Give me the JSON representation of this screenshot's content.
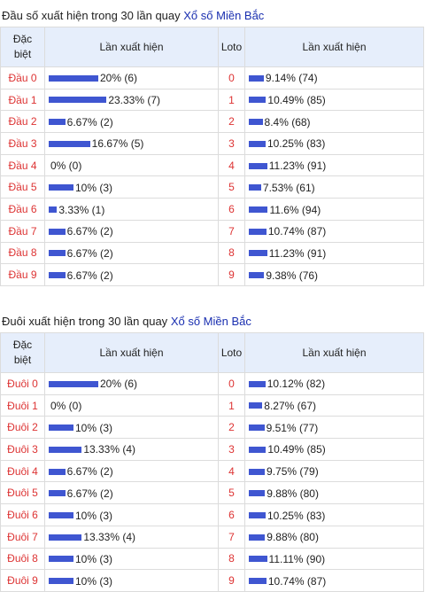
{
  "head_section": {
    "title_prefix": "Đầu số xuất hiện trong 30 lần quay",
    "title_link": "Xổ số Miền Bắc",
    "col_special": "Đặc biệt",
    "col_count1": "Lần xuất hiện",
    "col_loto": "Loto",
    "col_count2": "Lần xuất hiện",
    "rows": [
      {
        "label": "Đầu 0",
        "special_pct": 20,
        "special_text": "20% (6)",
        "loto": "0",
        "loto_pct": 9.14,
        "loto_text": "9.14% (74)"
      },
      {
        "label": "Đầu 1",
        "special_pct": 23.33,
        "special_text": "23.33% (7)",
        "loto": "1",
        "loto_pct": 10.49,
        "loto_text": "10.49% (85)"
      },
      {
        "label": "Đầu 2",
        "special_pct": 6.67,
        "special_text": "6.67% (2)",
        "loto": "2",
        "loto_pct": 8.4,
        "loto_text": "8.4% (68)"
      },
      {
        "label": "Đầu 3",
        "special_pct": 16.67,
        "special_text": "16.67% (5)",
        "loto": "3",
        "loto_pct": 10.25,
        "loto_text": "10.25% (83)"
      },
      {
        "label": "Đầu 4",
        "special_pct": 0,
        "special_text": "0% (0)",
        "loto": "4",
        "loto_pct": 11.23,
        "loto_text": "11.23% (91)"
      },
      {
        "label": "Đầu 5",
        "special_pct": 10,
        "special_text": "10% (3)",
        "loto": "5",
        "loto_pct": 7.53,
        "loto_text": "7.53% (61)"
      },
      {
        "label": "Đầu 6",
        "special_pct": 3.33,
        "special_text": "3.33% (1)",
        "loto": "6",
        "loto_pct": 11.6,
        "loto_text": "11.6% (94)"
      },
      {
        "label": "Đầu 7",
        "special_pct": 6.67,
        "special_text": "6.67% (2)",
        "loto": "7",
        "loto_pct": 10.74,
        "loto_text": "10.74% (87)"
      },
      {
        "label": "Đầu 8",
        "special_pct": 6.67,
        "special_text": "6.67% (2)",
        "loto": "8",
        "loto_pct": 11.23,
        "loto_text": "11.23% (91)"
      },
      {
        "label": "Đầu 9",
        "special_pct": 6.67,
        "special_text": "6.67% (2)",
        "loto": "9",
        "loto_pct": 9.38,
        "loto_text": "9.38% (76)"
      }
    ]
  },
  "tail_section": {
    "title_prefix": "Đuôi xuất hiện trong 30 lần quay",
    "title_link": "Xổ số Miền Bắc",
    "col_special": "Đặc biệt",
    "col_count1": "Lần xuất hiện",
    "col_loto": "Loto",
    "col_count2": "Lần xuất hiện",
    "rows": [
      {
        "label": "Đuôi 0",
        "special_pct": 20,
        "special_text": "20% (6)",
        "loto": "0",
        "loto_pct": 10.12,
        "loto_text": "10.12% (82)"
      },
      {
        "label": "Đuôi 1",
        "special_pct": 0,
        "special_text": "0% (0)",
        "loto": "1",
        "loto_pct": 8.27,
        "loto_text": "8.27% (67)"
      },
      {
        "label": "Đuôi 2",
        "special_pct": 10,
        "special_text": "10% (3)",
        "loto": "2",
        "loto_pct": 9.51,
        "loto_text": "9.51% (77)"
      },
      {
        "label": "Đuôi 3",
        "special_pct": 13.33,
        "special_text": "13.33% (4)",
        "loto": "3",
        "loto_pct": 10.49,
        "loto_text": "10.49% (85)"
      },
      {
        "label": "Đuôi 4",
        "special_pct": 6.67,
        "special_text": "6.67% (2)",
        "loto": "4",
        "loto_pct": 9.75,
        "loto_text": "9.75% (79)"
      },
      {
        "label": "Đuôi 5",
        "special_pct": 6.67,
        "special_text": "6.67% (2)",
        "loto": "5",
        "loto_pct": 9.88,
        "loto_text": "9.88% (80)"
      },
      {
        "label": "Đuôi 6",
        "special_pct": 10,
        "special_text": "10% (3)",
        "loto": "6",
        "loto_pct": 10.25,
        "loto_text": "10.25% (83)"
      },
      {
        "label": "Đuôi 7",
        "special_pct": 13.33,
        "special_text": "13.33% (4)",
        "loto": "7",
        "loto_pct": 9.88,
        "loto_text": "9.88% (80)"
      },
      {
        "label": "Đuôi 8",
        "special_pct": 10,
        "special_text": "10% (3)",
        "loto": "8",
        "loto_pct": 11.11,
        "loto_text": "11.11% (90)"
      },
      {
        "label": "Đuôi 9",
        "special_pct": 10,
        "special_text": "10% (3)",
        "loto": "9",
        "loto_pct": 10.74,
        "loto_text": "10.74% (87)"
      }
    ]
  },
  "colors": {
    "bar": "#3f56d1",
    "label_red": "#d33",
    "link_blue": "#1a2fb0",
    "header_bg": "#e6eefb"
  }
}
